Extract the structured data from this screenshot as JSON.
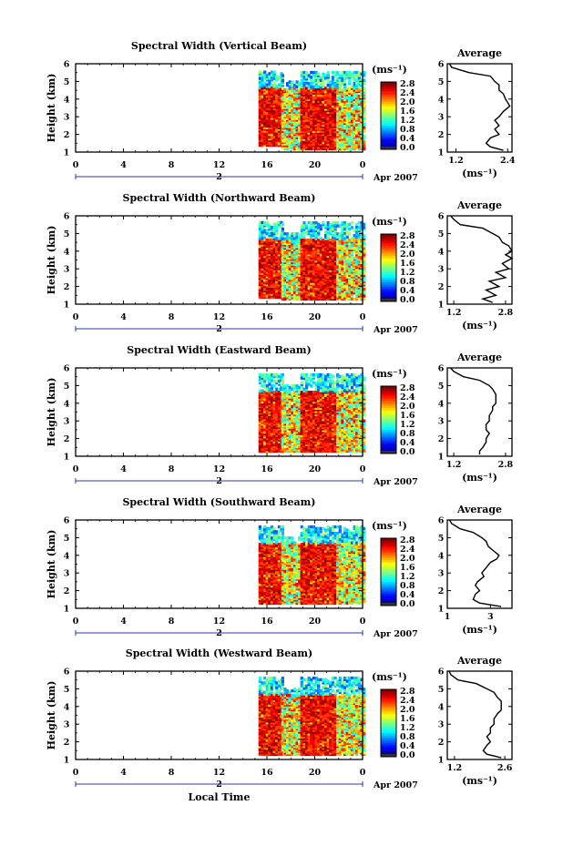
{
  "figure": {
    "xlabel": "Local Time",
    "date_label": "Apr 2007",
    "day_label": "2",
    "ylabel": "Height (km)",
    "colorbar_unit": "(ms⁻¹)",
    "avg_title": "Average",
    "avg_xlabel": "(ms⁻¹)"
  },
  "chart_data": [
    {
      "type": "heatmap",
      "title": "Spectral Width (Vertical Beam)",
      "xlabel": "Local Time",
      "ylabel": "Height (km)",
      "x_ticks": [
        "0",
        "4",
        "8",
        "12",
        "16",
        "20",
        "0"
      ],
      "xlim": [
        0,
        24
      ],
      "ylim": [
        1,
        6
      ],
      "y_ticks": [
        "1",
        "2",
        "3",
        "4",
        "5",
        "6"
      ],
      "colorbar": {
        "ticks": [
          "0.0",
          "0.4",
          "0.8",
          "1.2",
          "1.6",
          "2.0",
          "2.4",
          "2.8"
        ],
        "range": [
          0,
          2.8
        ]
      },
      "data_periods": [
        [
          15.3,
          17.2,
          1.3,
          5.5
        ],
        [
          17.2,
          24,
          1.1,
          5.5
        ]
      ],
      "average_profile": {
        "title": "Average",
        "xlabel": "(ms⁻¹)",
        "x_ticks": [
          "1.2",
          "2.4"
        ],
        "xlim": [
          1.0,
          2.5
        ],
        "height": [
          1.1,
          1.3,
          1.5,
          1.8,
          2.0,
          2.3,
          2.5,
          2.8,
          3.0,
          3.3,
          3.6,
          3.8,
          4.0,
          4.3,
          4.5,
          4.8,
          5.0,
          5.3,
          5.5,
          5.8,
          6.0
        ],
        "value": [
          2.3,
          2.0,
          1.9,
          2.0,
          2.2,
          2.1,
          2.2,
          2.1,
          2.2,
          2.3,
          2.45,
          2.4,
          2.35,
          2.3,
          2.2,
          2.2,
          2.1,
          2.0,
          1.5,
          1.1,
          1.05
        ]
      }
    },
    {
      "type": "heatmap",
      "title": "Spectral Width (Northward Beam)",
      "xlabel": "Local Time",
      "ylabel": "Height (km)",
      "x_ticks": [
        "0",
        "4",
        "8",
        "12",
        "16",
        "20",
        "0"
      ],
      "xlim": [
        0,
        24
      ],
      "ylim": [
        1,
        6
      ],
      "y_ticks": [
        "1",
        "2",
        "3",
        "4",
        "5",
        "6"
      ],
      "colorbar": {
        "ticks": [
          "0.0",
          "0.4",
          "0.8",
          "1.2",
          "1.6",
          "2.0",
          "2.4",
          "2.8"
        ],
        "range": [
          0,
          2.8
        ]
      },
      "data_periods": [
        [
          15.3,
          17.2,
          1.3,
          5.6
        ],
        [
          17.2,
          24,
          1.2,
          5.6
        ]
      ],
      "average_profile": {
        "title": "Average",
        "xlabel": "(ms⁻¹)",
        "x_ticks": [
          "1.2",
          "2.8"
        ],
        "xlim": [
          1.0,
          3.0
        ],
        "height": [
          1.1,
          1.3,
          1.5,
          1.8,
          2.0,
          2.3,
          2.5,
          2.8,
          3.0,
          3.3,
          3.6,
          3.8,
          4.0,
          4.3,
          4.5,
          4.8,
          5.0,
          5.3,
          5.5,
          5.8,
          6.0
        ],
        "value": [
          2.4,
          2.1,
          2.5,
          2.2,
          2.6,
          2.3,
          2.8,
          2.5,
          2.9,
          2.7,
          3.0,
          2.8,
          3.0,
          2.9,
          2.7,
          2.6,
          2.4,
          2.1,
          1.4,
          1.2,
          1.1
        ]
      }
    },
    {
      "type": "heatmap",
      "title": "Spectral Width (Eastward Beam)",
      "xlabel": "Local Time",
      "ylabel": "Height (km)",
      "x_ticks": [
        "0",
        "4",
        "8",
        "12",
        "16",
        "20",
        "0"
      ],
      "xlim": [
        0,
        24
      ],
      "ylim": [
        1,
        6
      ],
      "y_ticks": [
        "1",
        "2",
        "3",
        "4",
        "5",
        "6"
      ],
      "colorbar": {
        "ticks": [
          "0.0",
          "0.4",
          "0.8",
          "1.2",
          "1.6",
          "2.0",
          "2.4",
          "2.8"
        ],
        "range": [
          0,
          2.8
        ]
      },
      "data_periods": [
        [
          15.3,
          17.2,
          1.2,
          5.6
        ],
        [
          17.2,
          24,
          1.2,
          5.6
        ]
      ],
      "average_profile": {
        "title": "Average",
        "xlabel": "(ms⁻¹)",
        "x_ticks": [
          "1.2",
          "2.8"
        ],
        "xlim": [
          1.0,
          3.0
        ],
        "height": [
          1.1,
          1.3,
          1.5,
          1.8,
          2.0,
          2.3,
          2.5,
          2.8,
          3.0,
          3.3,
          3.6,
          3.8,
          4.0,
          4.3,
          4.5,
          4.8,
          5.0,
          5.3,
          5.5,
          5.8,
          6.0
        ],
        "value": [
          2.0,
          2.0,
          2.1,
          2.2,
          2.2,
          2.3,
          2.2,
          2.2,
          2.3,
          2.3,
          2.4,
          2.4,
          2.5,
          2.5,
          2.5,
          2.4,
          2.3,
          2.0,
          1.5,
          1.2,
          1.1
        ]
      }
    },
    {
      "type": "heatmap",
      "title": "Spectral Width (Southward Beam)",
      "xlabel": "Local Time",
      "ylabel": "Height (km)",
      "x_ticks": [
        "0",
        "4",
        "8",
        "12",
        "16",
        "20",
        "0"
      ],
      "xlim": [
        0,
        24
      ],
      "ylim": [
        1,
        6
      ],
      "y_ticks": [
        "1",
        "2",
        "3",
        "4",
        "5",
        "6"
      ],
      "colorbar": {
        "ticks": [
          "0.0",
          "0.4",
          "0.8",
          "1.2",
          "1.6",
          "2.0",
          "2.4",
          "2.8"
        ],
        "range": [
          0,
          2.8
        ]
      },
      "data_periods": [
        [
          15.3,
          17.2,
          1.2,
          5.6
        ],
        [
          17.2,
          24,
          1.2,
          5.6
        ]
      ],
      "average_profile": {
        "title": "Average",
        "xlabel": "(ms⁻¹)",
        "x_ticks": [
          "1",
          "3"
        ],
        "xlim": [
          1.0,
          4.0
        ],
        "height": [
          1.1,
          1.3,
          1.5,
          1.8,
          2.0,
          2.3,
          2.5,
          2.8,
          3.0,
          3.3,
          3.6,
          3.8,
          4.0,
          4.3,
          4.5,
          4.8,
          5.0,
          5.3,
          5.5,
          5.8,
          6.0
        ],
        "value": [
          3.5,
          2.5,
          2.2,
          2.3,
          2.5,
          2.3,
          2.4,
          2.7,
          2.6,
          2.8,
          3.0,
          3.3,
          3.4,
          3.1,
          2.9,
          2.8,
          2.6,
          2.2,
          1.6,
          1.2,
          1.1
        ]
      }
    },
    {
      "type": "heatmap",
      "title": "Spectral Width (Westward Beam)",
      "xlabel": "Local Time",
      "ylabel": "Height (km)",
      "x_ticks": [
        "0",
        "4",
        "8",
        "12",
        "16",
        "20",
        "0"
      ],
      "xlim": [
        0,
        24
      ],
      "ylim": [
        1,
        6
      ],
      "y_ticks": [
        "1",
        "2",
        "3",
        "4",
        "5",
        "6"
      ],
      "colorbar": {
        "ticks": [
          "0.0",
          "0.4",
          "0.8",
          "1.2",
          "1.6",
          "2.0",
          "2.4",
          "2.8"
        ],
        "range": [
          0,
          2.8
        ]
      },
      "data_periods": [
        [
          15.3,
          17.2,
          1.2,
          5.6
        ],
        [
          17.2,
          24,
          1.2,
          5.6
        ]
      ],
      "average_profile": {
        "title": "Average",
        "xlabel": "(ms⁻¹)",
        "x_ticks": [
          "1.2",
          "2.6"
        ],
        "xlim": [
          1.0,
          2.8
        ],
        "height": [
          1.1,
          1.3,
          1.5,
          1.8,
          2.0,
          2.3,
          2.5,
          2.8,
          3.0,
          3.3,
          3.6,
          3.8,
          4.0,
          4.3,
          4.5,
          4.8,
          5.0,
          5.3,
          5.5,
          5.8,
          6.0
        ],
        "value": [
          2.5,
          2.1,
          2.0,
          2.1,
          2.2,
          2.1,
          2.2,
          2.2,
          2.3,
          2.3,
          2.4,
          2.5,
          2.5,
          2.5,
          2.4,
          2.3,
          2.1,
          1.8,
          1.3,
          1.1,
          1.05
        ]
      }
    }
  ]
}
